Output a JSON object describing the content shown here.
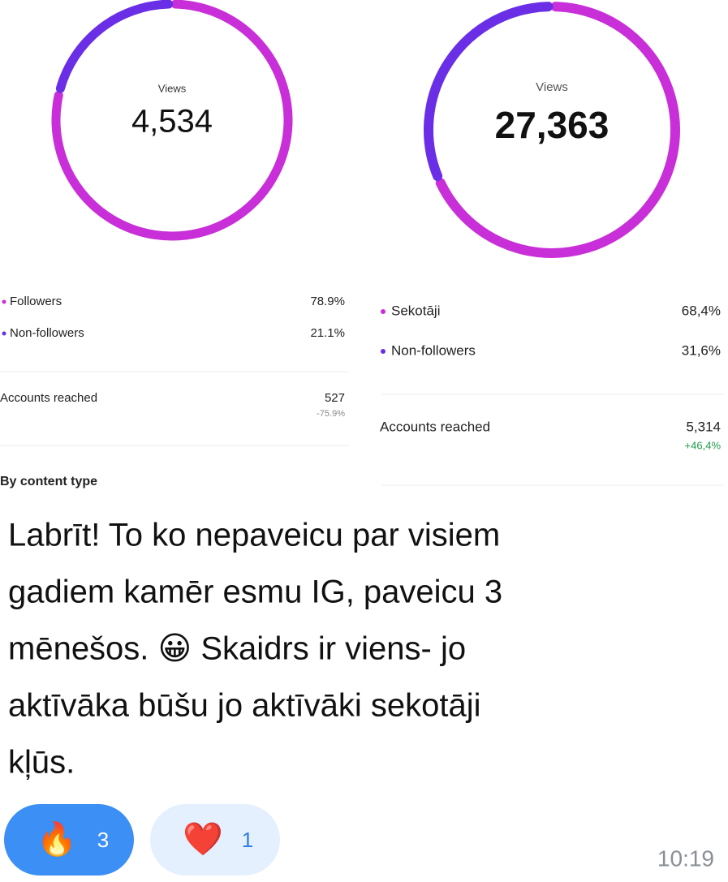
{
  "panels": [
    {
      "views_label": "Views",
      "views": "4,534",
      "share": [
        {
          "label": "Followers",
          "value": 78.9,
          "value_label": "78.9%",
          "color": "#c92fd8"
        },
        {
          "label": "Non-followers",
          "value": 21.1,
          "value_label": "21.1%",
          "color": "#6a2ee6"
        }
      ],
      "reach_label": "Accounts reached",
      "reach": "527",
      "reach_change": "-75.9%",
      "section": "By content type"
    },
    {
      "views_label": "Views",
      "views": "27,363",
      "share": [
        {
          "label": "Sekotāji",
          "value": 68.4,
          "value_label": "68,4%",
          "color": "#c92fd8"
        },
        {
          "label": "Non-followers",
          "value": 31.6,
          "value_label": "31,6%",
          "color": "#6a2ee6"
        }
      ],
      "reach_label": "Accounts reached",
      "reach": "5,314",
      "reach_change": "+46,4%"
    }
  ],
  "message": {
    "lines": [
      "Labrīt! To ko nepaveicu par visiem",
      "gadiem kamēr esmu IG, paveicu 3",
      "mēnešos. 😀 Skaidrs ir viens- jo",
      "aktīvāka būšu jo aktīvāki sekotāji",
      "kļūs."
    ],
    "time": "10:19"
  },
  "reactions": [
    {
      "emoji": "🔥",
      "count": "3"
    },
    {
      "emoji": "❤️",
      "count": "1"
    }
  ]
}
